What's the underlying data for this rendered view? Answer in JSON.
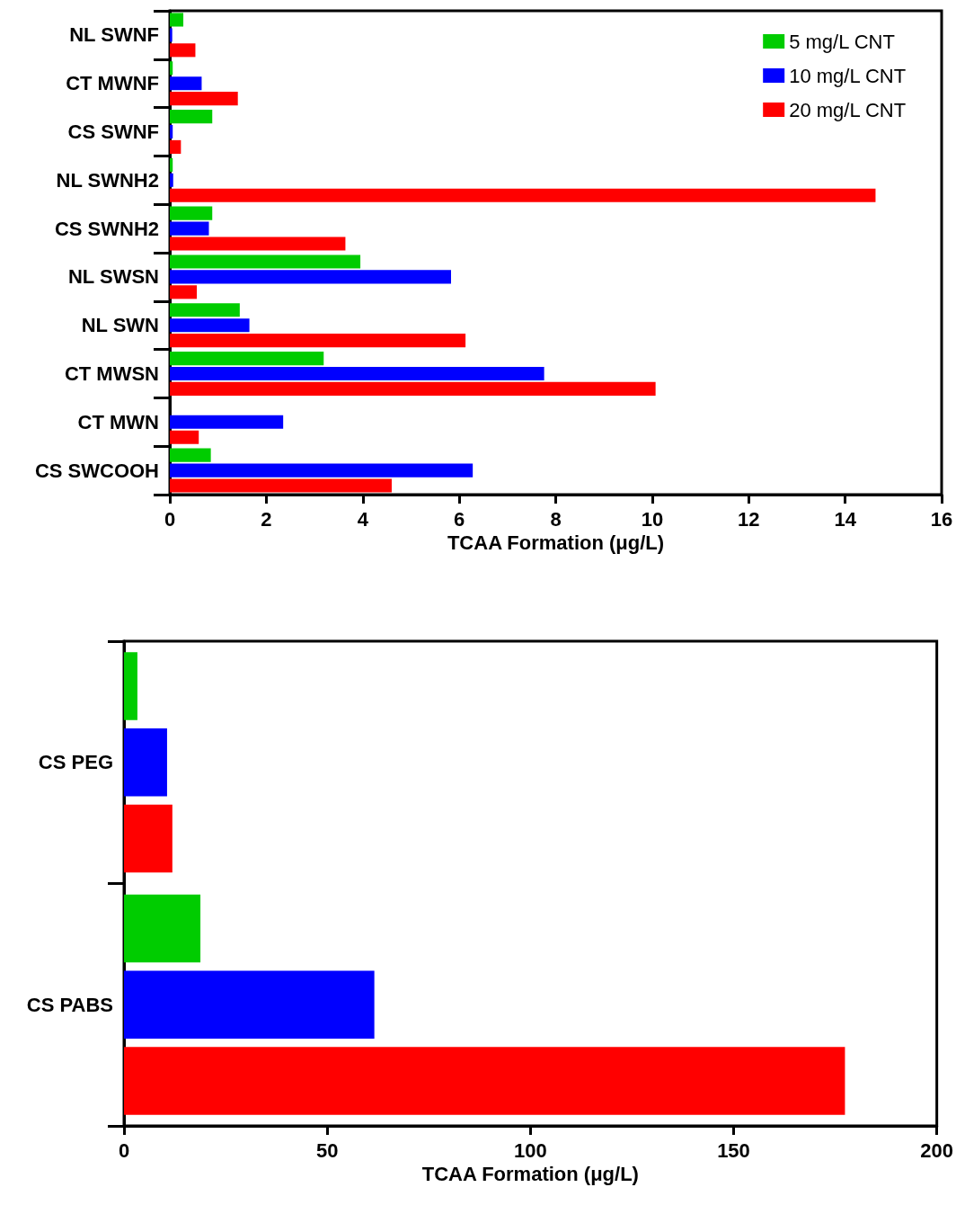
{
  "chart_data": [
    {
      "type": "bar",
      "orientation": "horizontal",
      "xlabel": "TCAA Formation (μg/L)",
      "categories": [
        "NL SWNF",
        "CT MWNF",
        "CS SWNF",
        "NL SWNH2",
        "CS SWNH2",
        "NL SWSN",
        "NL SWN",
        "CT MWSN",
        "CT MWN",
        "CS SWCOOH"
      ],
      "series": [
        {
          "name": "5 mg/L CNT",
          "color": "#00cc00",
          "values": [
            0.28,
            0.06,
            0.88,
            0.06,
            0.88,
            3.95,
            1.45,
            3.19,
            null,
            0.85
          ]
        },
        {
          "name": "10 mg/L CNT",
          "color": "#0000ff",
          "values": [
            0.05,
            0.66,
            0.06,
            0.07,
            0.81,
            5.83,
            1.65,
            7.76,
            2.35,
            6.28
          ]
        },
        {
          "name": "20 mg/L CNT",
          "color": "#ff0000",
          "values": [
            0.53,
            1.41,
            0.23,
            14.63,
            3.64,
            0.56,
            6.13,
            10.07,
            0.6,
            4.6
          ]
        }
      ],
      "xlim": [
        0,
        16
      ],
      "xticks": [
        0,
        2,
        4,
        6,
        8,
        10,
        12,
        14,
        16
      ],
      "grid": false,
      "legend": "top right"
    },
    {
      "type": "bar",
      "orientation": "horizontal",
      "xlabel": "TCAA Formation (μg/L)",
      "categories": [
        "CS PEG",
        "CS PABS"
      ],
      "series": [
        {
          "color": "#00cc00",
          "values": [
            3.3,
            18.8
          ]
        },
        {
          "color": "#0000ff",
          "values": [
            10.6,
            61.6
          ]
        },
        {
          "color": "#ff0000",
          "values": [
            11.9,
            177.4
          ]
        }
      ],
      "xlim": [
        0,
        200
      ],
      "xticks": [
        0,
        50,
        100,
        150,
        200
      ],
      "grid": false,
      "legend": false
    }
  ]
}
